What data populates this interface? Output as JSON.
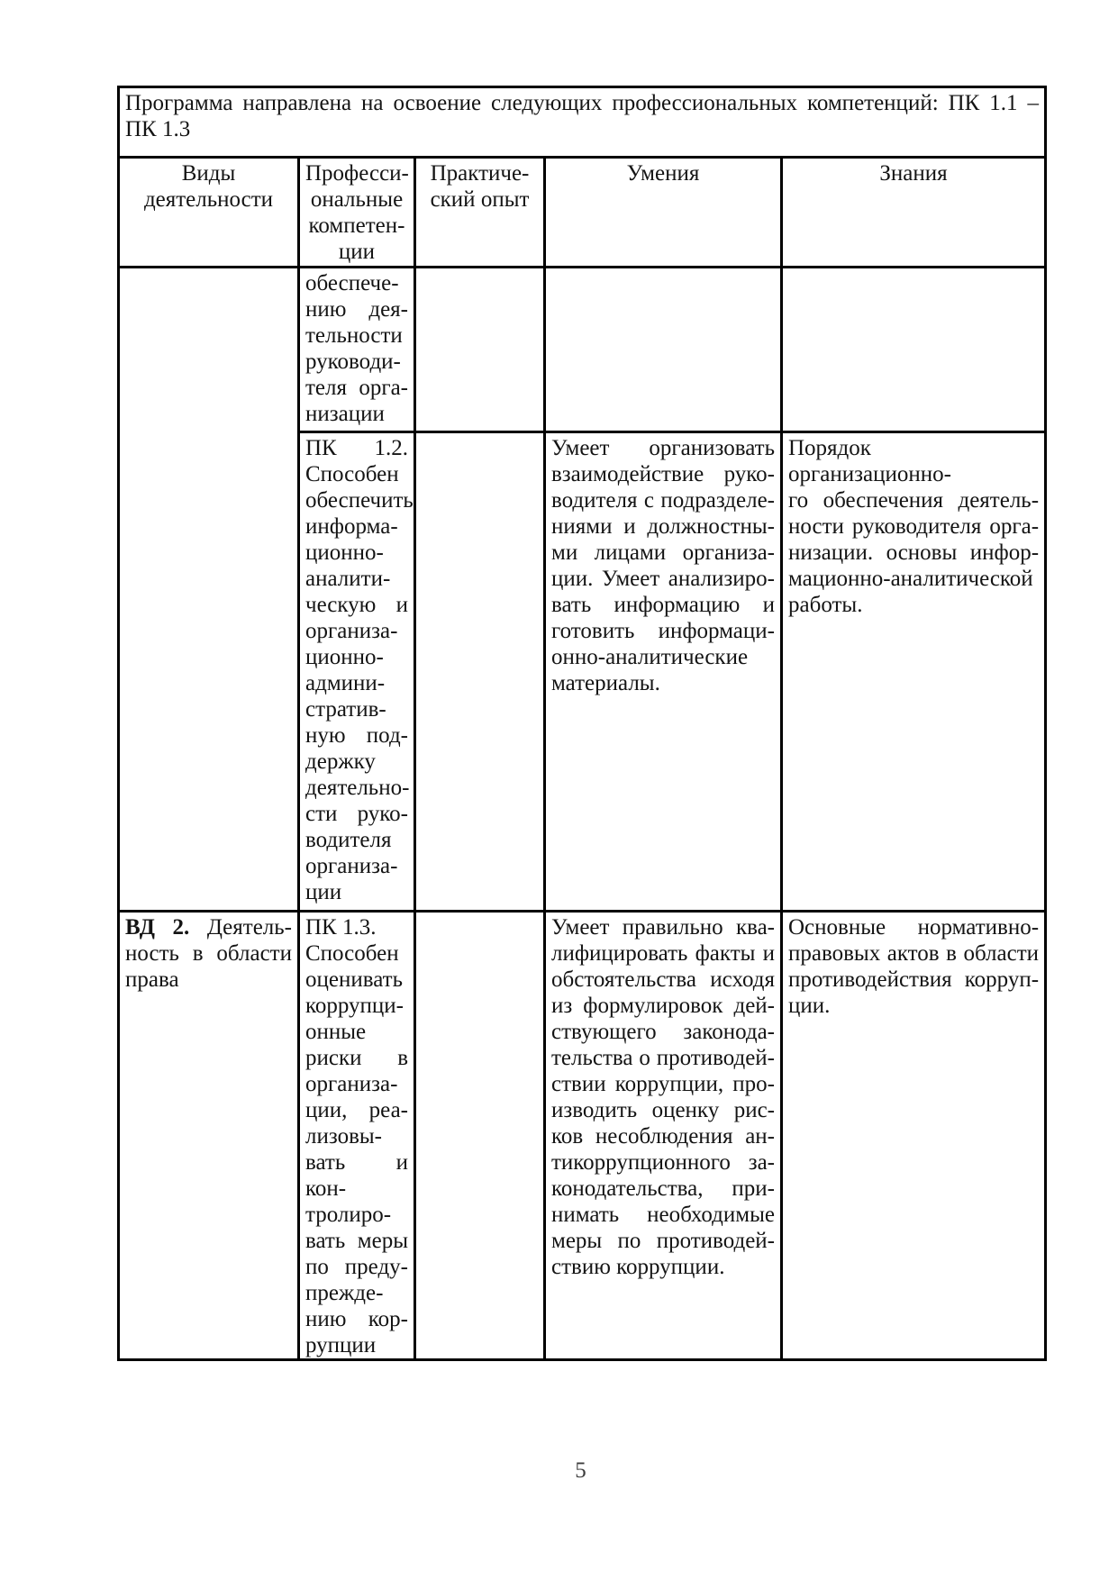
{
  "page": {
    "number": "5"
  },
  "colors": {
    "text": "#141414",
    "border": "#000000",
    "background": "#ffffff"
  },
  "caption": {
    "lines": [
      "Программа направлена на освоение следующих профессиональных компетенций: ПК 1.1 –",
      "ПК 1.3"
    ]
  },
  "header": {
    "activities": "Виды\nдеятельности",
    "competencies": "Професси-\nональные\nкомпетен-\nции",
    "experience": "Практиче-\nский опыт",
    "skills": "Умения",
    "knowledge": "Знания"
  },
  "body": {
    "row1": {
      "competency": {
        "lines": [
          "обеспече-",
          "нию дея-",
          "тельности",
          "руководи-",
          "теля орга-",
          "низации"
        ]
      }
    },
    "row2": {
      "competency": {
        "lines": [
          "ПК 1.2.",
          "Способен",
          "обеспечить",
          "информа-",
          "ционно-",
          "аналити-",
          "ческую и",
          "организа-",
          "ционно-",
          "админи-",
          "стратив-",
          "ную под-",
          "держку",
          "деятельно-",
          "сти руко-",
          "водителя",
          "организа-",
          "ции"
        ]
      },
      "skills": {
        "lines": [
          "Умеет организовать",
          "взаимодействие руко-",
          "водителя с подразделе-",
          "ниями и должностны-",
          "ми лицами организа-",
          "ции. Умеет анализиро-",
          "вать информацию и",
          "готовить информаци-",
          "онно-аналитические",
          "материалы."
        ]
      },
      "knowledge": {
        "lines": [
          "Порядок организационно-",
          "го обеспечения деятель-",
          "ности руководителя орга-",
          "низации. основы инфор-",
          "мационно-аналитической",
          "работы."
        ]
      }
    },
    "row3": {
      "activity": {
        "lines": [
          {
            "b": "ВД 2.",
            "t": " Деятель-"
          },
          "ность в области",
          "права"
        ]
      },
      "competency": {
        "lines": [
          {
            "t": "ПК 1.3.",
            "last": true
          },
          "Способен",
          "оценивать",
          "коррупци-",
          "онные",
          "риски в",
          "организа-",
          "ции, реа-",
          "лизовы-",
          "вать и кон-",
          "тролиро-",
          "вать меры",
          "по преду-",
          "прежде-",
          "нию кор-",
          "рупции"
        ]
      },
      "skills": {
        "lines": [
          "Умеет правильно ква-",
          "лифицировать факты и",
          "обстоятельства исходя",
          "из формулировок дей-",
          "ствующего законода-",
          "тельства о противодей-",
          "ствии коррупции, про-",
          "изводить оценку рис-",
          "ков несоблюдения ан-",
          "тикоррупционного за-",
          "конодательства, при-",
          "нимать необходимые",
          "меры по противодей-",
          "ствию коррупции."
        ]
      },
      "knowledge": {
        "lines": [
          "Основные нормативно-",
          "правовых актов в области",
          "противодействия корруп-",
          "ции."
        ]
      }
    }
  }
}
